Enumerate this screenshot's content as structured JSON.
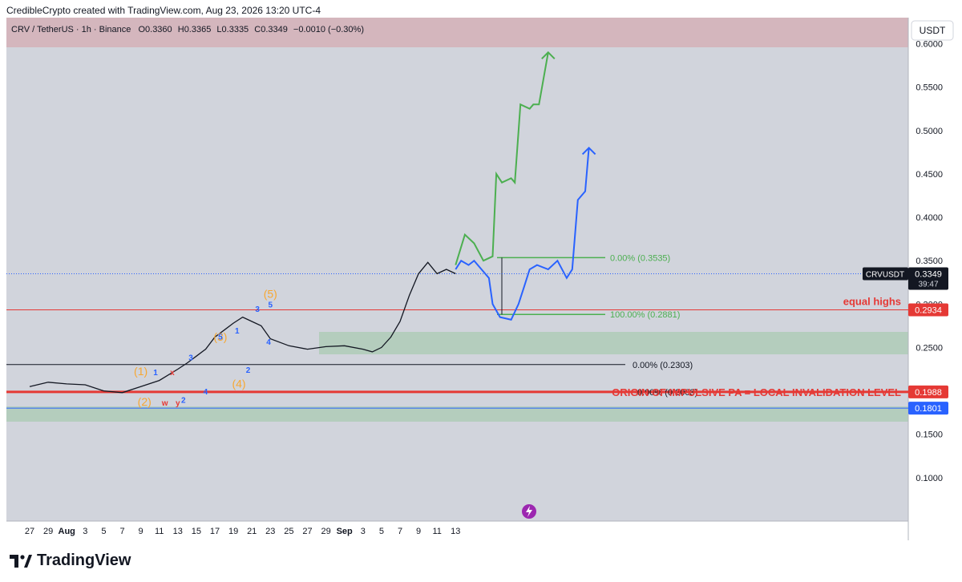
{
  "header": {
    "attribution": "CredibleCrypto created with TradingView.com, Aug 23, 2026 13:20 UTC-4"
  },
  "footer": {
    "brand": "TradingView"
  },
  "legend": {
    "symbol": "CRV / TetherUS · 1h · Binance",
    "o_label": "O",
    "o": "0.3360",
    "h_label": "H",
    "h": "0.3365",
    "l_label": "L",
    "l": "0.3335",
    "c_label": "C",
    "c": "0.3349",
    "change": "−0.0010 (−0.30%)"
  },
  "currency_button": "USDT",
  "colors": {
    "plot_bg": "#d1d4dc",
    "top_zone": "#d4b6bd",
    "green_zone": "#b4cdbd",
    "red": "#e53935",
    "green": "#4caf50",
    "blue": "#2962ff",
    "orange": "#f7a731"
  },
  "chart_data": {
    "type": "line",
    "ylim": [
      0.05,
      0.63
    ],
    "x_ticks": [
      "27",
      "29",
      "Aug",
      "3",
      "5",
      "7",
      "9",
      "11",
      "13",
      "15",
      "17",
      "19",
      "21",
      "23",
      "25",
      "27",
      "29",
      "Sep",
      "3",
      "5",
      "7",
      "9",
      "11",
      "13"
    ],
    "y_ticks": [
      "0.6000",
      "0.5500",
      "0.5000",
      "0.4500",
      "0.4000",
      "0.3500",
      "0.3000",
      "0.2500",
      "0.2000",
      "0.1500",
      "0.1000"
    ],
    "price_series": {
      "x": [
        0,
        1,
        2,
        3,
        4,
        5,
        6,
        7,
        8,
        8.5,
        9,
        9.5,
        10,
        10.5,
        11,
        11.5,
        12,
        12.5,
        13,
        14,
        15,
        16,
        17,
        18,
        18.5,
        19,
        19.5,
        20,
        20.5,
        21,
        21.5,
        22,
        22.5,
        23
      ],
      "y": [
        0.205,
        0.21,
        0.208,
        0.207,
        0.2,
        0.198,
        0.205,
        0.212,
        0.225,
        0.232,
        0.24,
        0.248,
        0.262,
        0.27,
        0.278,
        0.285,
        0.28,
        0.275,
        0.26,
        0.252,
        0.248,
        0.251,
        0.252,
        0.248,
        0.245,
        0.25,
        0.262,
        0.28,
        0.31,
        0.335,
        0.348,
        0.335,
        0.34,
        0.335
      ]
    },
    "projection_green": {
      "x": [
        23,
        23.5,
        24,
        24.5,
        25,
        25.2,
        25.5,
        26,
        26.2,
        26.5,
        27,
        27.2,
        27.5,
        28
      ],
      "y": [
        0.345,
        0.38,
        0.37,
        0.35,
        0.355,
        0.45,
        0.44,
        0.445,
        0.44,
        0.53,
        0.525,
        0.53,
        0.53,
        0.59
      ]
    },
    "projection_blue": {
      "x": [
        23,
        23.3,
        23.7,
        24,
        24.4,
        24.8,
        25,
        25.4,
        26,
        26.4,
        26.7,
        27,
        27.4,
        28,
        28.5,
        29,
        29.3,
        29.6,
        30,
        30.2
      ],
      "y": [
        0.34,
        0.35,
        0.345,
        0.35,
        0.34,
        0.33,
        0.3,
        0.285,
        0.282,
        0.3,
        0.32,
        0.34,
        0.345,
        0.34,
        0.35,
        0.33,
        0.34,
        0.42,
        0.43,
        0.48
      ]
    },
    "levels": [
      {
        "price": 0.2934,
        "label": "equal highs",
        "tag": "0.2934",
        "color": "#e53935"
      },
      {
        "price": 0.1988,
        "label": "ORIGIN OF IMPULSIVE PA = LOCAL INVALIDATION LEVEL",
        "tag": "0.1988",
        "color": "#e53935"
      },
      {
        "price": 0.1801,
        "tag": "0.1801",
        "color": "#2962ff"
      },
      {
        "price": 0.2303,
        "label": "0.00% (0.2303)",
        "color": "#131722"
      },
      {
        "price": 0.3535,
        "label": "0.00% (0.3535)",
        "color": "#4caf50"
      },
      {
        "price": 0.2881,
        "label": "100.00% (0.2881)",
        "color": "#4caf50"
      }
    ],
    "overlapping_fib_label": "0.00% (0.2003)",
    "current": {
      "price": 0.3349,
      "ticker": "CRVUSDT",
      "value": "0.3349",
      "countdown": "39:47"
    },
    "wave_labels": [
      {
        "text": "(1)",
        "x": 6.0,
        "y": 0.218,
        "color": "#f7a731"
      },
      {
        "text": "(2)",
        "x": 6.2,
        "y": 0.183,
        "color": "#f7a731"
      },
      {
        "text": "(3)",
        "x": 10.3,
        "y": 0.258,
        "color": "#f7a731"
      },
      {
        "text": "(4)",
        "x": 11.3,
        "y": 0.204,
        "color": "#f7a731"
      },
      {
        "text": "(5)",
        "x": 13.0,
        "y": 0.307,
        "color": "#f7a731"
      },
      {
        "text": "x",
        "x": 7.7,
        "y": 0.218,
        "color": "#e53935"
      },
      {
        "text": "w",
        "x": 7.3,
        "y": 0.183,
        "color": "#e53935"
      },
      {
        "text": "y",
        "x": 8.0,
        "y": 0.183,
        "color": "#e53935"
      },
      {
        "text": "1",
        "x": 6.8,
        "y": 0.218,
        "color": "#2962ff"
      },
      {
        "text": "2",
        "x": 8.3,
        "y": 0.186,
        "color": "#2962ff"
      },
      {
        "text": "3",
        "x": 8.7,
        "y": 0.235,
        "color": "#2962ff"
      },
      {
        "text": "4",
        "x": 9.5,
        "y": 0.196,
        "color": "#2962ff"
      },
      {
        "text": "5",
        "x": 10.3,
        "y": 0.259,
        "color": "#2962ff"
      },
      {
        "text": "1",
        "x": 11.2,
        "y": 0.266,
        "color": "#2962ff"
      },
      {
        "text": "2",
        "x": 11.8,
        "y": 0.221,
        "color": "#2962ff"
      },
      {
        "text": "3",
        "x": 12.3,
        "y": 0.291,
        "color": "#2962ff"
      },
      {
        "text": "4",
        "x": 12.9,
        "y": 0.253,
        "color": "#2962ff"
      },
      {
        "text": "5",
        "x": 13.0,
        "y": 0.296,
        "color": "#2962ff"
      }
    ]
  }
}
